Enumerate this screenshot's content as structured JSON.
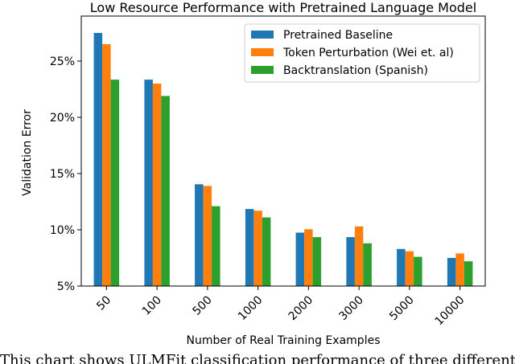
{
  "chart_data": {
    "type": "bar",
    "title": "Low Resource Performance with Pretrained Language Model",
    "xlabel": "Number of Real Training Examples",
    "ylabel": "Validation Error",
    "categories": [
      "50",
      "100",
      "500",
      "1000",
      "2000",
      "3000",
      "5000",
      "10000"
    ],
    "series": [
      {
        "name": "Pretrained Baseline",
        "color": "#1f77b4",
        "values": [
          27.5,
          23.35,
          14.05,
          11.85,
          9.75,
          9.35,
          8.3,
          7.5
        ]
      },
      {
        "name": "Token Perturbation (Wei et. al)",
        "color": "#ff7f0e",
        "values": [
          26.5,
          23.0,
          13.9,
          11.7,
          10.05,
          10.3,
          8.1,
          7.9
        ]
      },
      {
        "name": "Backtranslation (Spanish)",
        "color": "#2ca02c",
        "values": [
          23.35,
          21.9,
          12.1,
          11.1,
          9.35,
          8.8,
          7.6,
          7.2
        ]
      }
    ],
    "ylim": [
      5,
      29
    ],
    "yticks": [
      5,
      10,
      15,
      20,
      25
    ],
    "ytick_labels": [
      "5%",
      "10%",
      "15%",
      "20%",
      "25%"
    ],
    "grid": false,
    "legend": "top-right"
  },
  "caption": "This chart shows ULMFit classification performance of three different models"
}
